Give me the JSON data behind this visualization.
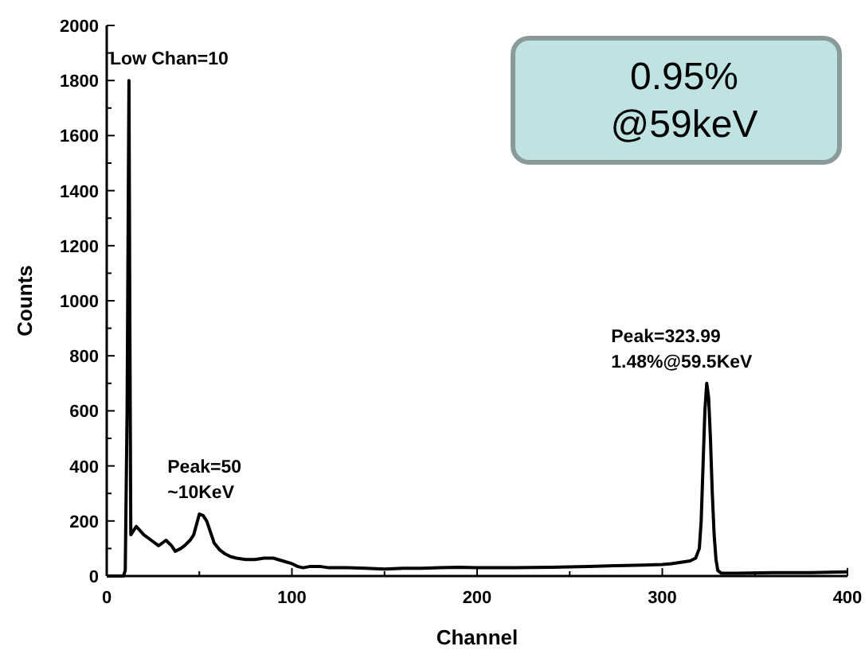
{
  "chart_data": {
    "type": "line",
    "xlabel": "Channel",
    "ylabel": "Counts",
    "x": [
      0,
      5,
      9,
      10,
      11,
      12,
      12.5,
      13,
      14,
      16,
      18,
      20,
      24,
      28,
      30,
      32,
      35,
      37,
      40,
      42,
      45,
      47,
      49,
      50,
      52,
      54,
      56,
      58,
      61,
      64,
      67,
      70,
      75,
      80,
      85,
      90,
      95,
      100,
      103,
      106,
      110,
      115,
      120,
      130,
      140,
      150,
      160,
      170,
      180,
      190,
      200,
      220,
      240,
      260,
      280,
      290,
      300,
      305,
      310,
      315,
      318,
      320,
      321,
      322,
      323,
      324,
      325,
      326,
      327,
      328,
      329,
      330,
      332,
      340,
      360,
      380,
      400
    ],
    "series": [
      {
        "color": "#000000",
        "values": [
          0,
          0,
          0,
          20,
          600,
          1800,
          900,
          150,
          160,
          180,
          165,
          150,
          130,
          110,
          120,
          130,
          110,
          90,
          100,
          110,
          130,
          150,
          200,
          225,
          220,
          200,
          160,
          120,
          95,
          80,
          70,
          65,
          60,
          60,
          65,
          65,
          55,
          45,
          35,
          30,
          35,
          35,
          30,
          30,
          28,
          25,
          28,
          28,
          30,
          32,
          30,
          30,
          32,
          35,
          38,
          40,
          42,
          45,
          50,
          55,
          65,
          100,
          200,
          400,
          600,
          700,
          650,
          500,
          300,
          150,
          60,
          20,
          10,
          10,
          12,
          12,
          15
        ]
      }
    ],
    "xlim": [
      0,
      400
    ],
    "ylim": [
      0,
      2000
    ],
    "xticks": [
      0,
      {
        "value": 50,
        "label": null
      },
      100,
      {
        "value": 150,
        "label": null
      },
      200,
      {
        "value": 250,
        "label": null
      },
      300,
      {
        "value": 350,
        "label": null
      },
      400
    ],
    "yticks": [
      0,
      {
        "value": 100,
        "label": null
      },
      200,
      {
        "value": 300,
        "label": null
      },
      400,
      {
        "value": 500,
        "label": null
      },
      600,
      {
        "value": 700,
        "label": null
      },
      800,
      {
        "value": 900,
        "label": null
      },
      1000,
      {
        "value": 1100,
        "label": null
      },
      1200,
      {
        "value": 1300,
        "label": null
      },
      1400,
      {
        "value": 1500,
        "label": null
      },
      1600,
      {
        "value": 1700,
        "label": null
      },
      1800,
      {
        "value": 1900,
        "label": null
      },
      2000
    ],
    "grid": false,
    "marker": "none",
    "line_style": "solid",
    "annotations": [
      {
        "text": "Low Chan=10",
        "x": 12,
        "y": 1800
      },
      {
        "text": "Peak=50\n~10KeV",
        "x": 50,
        "y": 225
      },
      {
        "text": "Peak=323.99\n1.48%@59.5KeV",
        "x": 323.99,
        "y": 700
      },
      "0.95%\n@59keV"
    ]
  }
}
